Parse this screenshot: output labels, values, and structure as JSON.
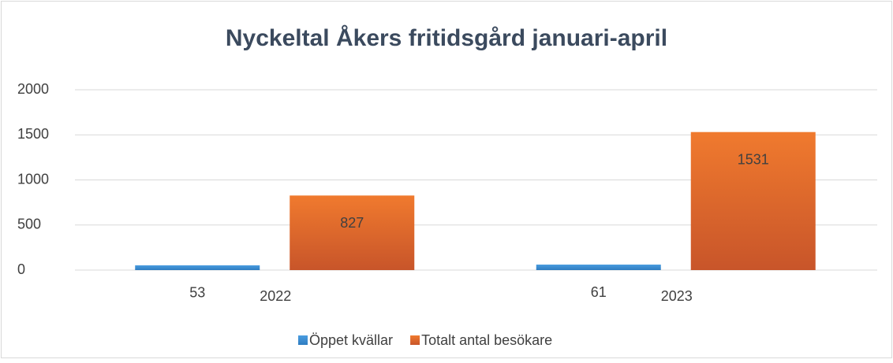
{
  "chart_data": {
    "type": "bar",
    "title": "Nyckeltal Åkers fritidsgård januari-april",
    "categories": [
      "2022",
      "2023"
    ],
    "series": [
      {
        "name": "Öppet kvällar",
        "color": "#3a8fd8",
        "values": [
          53,
          61
        ]
      },
      {
        "name": "Totalt antal besökare",
        "color": "#ee7a30",
        "values": [
          827,
          1531
        ]
      }
    ],
    "ylim": [
      0,
      2000
    ],
    "yticks": [
      0,
      500,
      1000,
      1500,
      2000
    ],
    "grid": true,
    "legend": "bottom"
  }
}
